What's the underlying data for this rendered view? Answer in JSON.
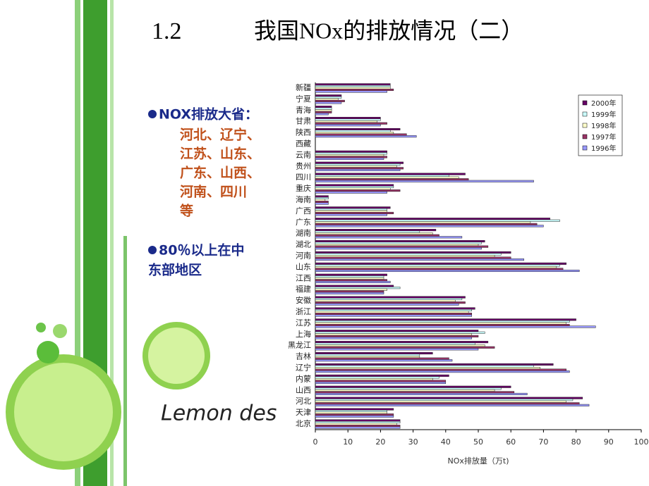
{
  "slide": {
    "section": "1.2",
    "title": "我国NOx的排放情况（二）",
    "bullets": [
      {
        "head": "NOX排放大省：",
        "lines": [
          "河北、辽宁、",
          "江苏、山东、",
          "广东、山西、",
          "河南、四川",
          "等"
        ]
      },
      {
        "lines": [
          "80％以上在中",
          "东部地区"
        ]
      }
    ],
    "decoration_text": "Lemon des"
  },
  "chart_data": {
    "type": "hbar",
    "x_label": "NOx排放量（万t)",
    "categories": [
      "新疆",
      "宁夏",
      "青海",
      "甘肃",
      "陕西",
      "西藏",
      "云南",
      "贵州",
      "四川",
      "重庆",
      "海南",
      "广西",
      "广东",
      "湖南",
      "湖北",
      "河南",
      "山东",
      "江西",
      "福建",
      "安徽",
      "浙江",
      "江苏",
      "上海",
      "黑龙江",
      "吉林",
      "辽宁",
      "内蒙",
      "山西",
      "河北",
      "天津",
      "北京"
    ],
    "series": [
      {
        "name": "2000年",
        "color": "#660066",
        "values": [
          23,
          8,
          5,
          20,
          26,
          0,
          22,
          27,
          46,
          24,
          4,
          23,
          72,
          37,
          52,
          60,
          77,
          22,
          24,
          46,
          49,
          80,
          50,
          53,
          36,
          73,
          41,
          60,
          82,
          24,
          26
        ]
      },
      {
        "name": "1999年",
        "color": "#ccffff",
        "values": [
          23,
          8,
          5,
          20,
          23,
          0,
          22,
          26,
          41,
          24,
          4,
          22,
          75,
          32,
          51,
          57,
          75,
          21,
          26,
          45,
          48,
          78,
          52,
          49,
          32,
          67,
          38,
          57,
          79,
          22,
          26
        ]
      },
      {
        "name": "1998年",
        "color": "#ffffcc",
        "values": [
          23,
          7,
          5,
          19,
          24,
          0,
          21,
          25,
          44,
          23,
          3,
          22,
          66,
          36,
          50,
          55,
          74,
          21,
          22,
          43,
          47,
          77,
          48,
          52,
          32,
          69,
          36,
          55,
          77,
          22,
          25
        ]
      },
      {
        "name": "1997年",
        "color": "#993366",
        "values": [
          24,
          9,
          5,
          22,
          28,
          0,
          22,
          27,
          47,
          26,
          4,
          24,
          68,
          38,
          53,
          60,
          76,
          22,
          21,
          46,
          48,
          78,
          50,
          55,
          41,
          77,
          40,
          61,
          81,
          24,
          26
        ]
      },
      {
        "name": "1996年",
        "color": "#9999ff",
        "values": [
          22,
          8,
          4,
          20,
          31,
          0,
          21,
          26,
          67,
          22,
          4,
          22,
          70,
          45,
          51,
          64,
          81,
          23,
          21,
          44,
          48,
          86,
          48,
          50,
          42,
          78,
          40,
          65,
          84,
          24,
          26
        ]
      }
    ],
    "xlim": [
      0,
      100
    ],
    "xticks": [
      0,
      10,
      20,
      30,
      40,
      50,
      60,
      70,
      80,
      90,
      100
    ],
    "legend": "top-right"
  }
}
